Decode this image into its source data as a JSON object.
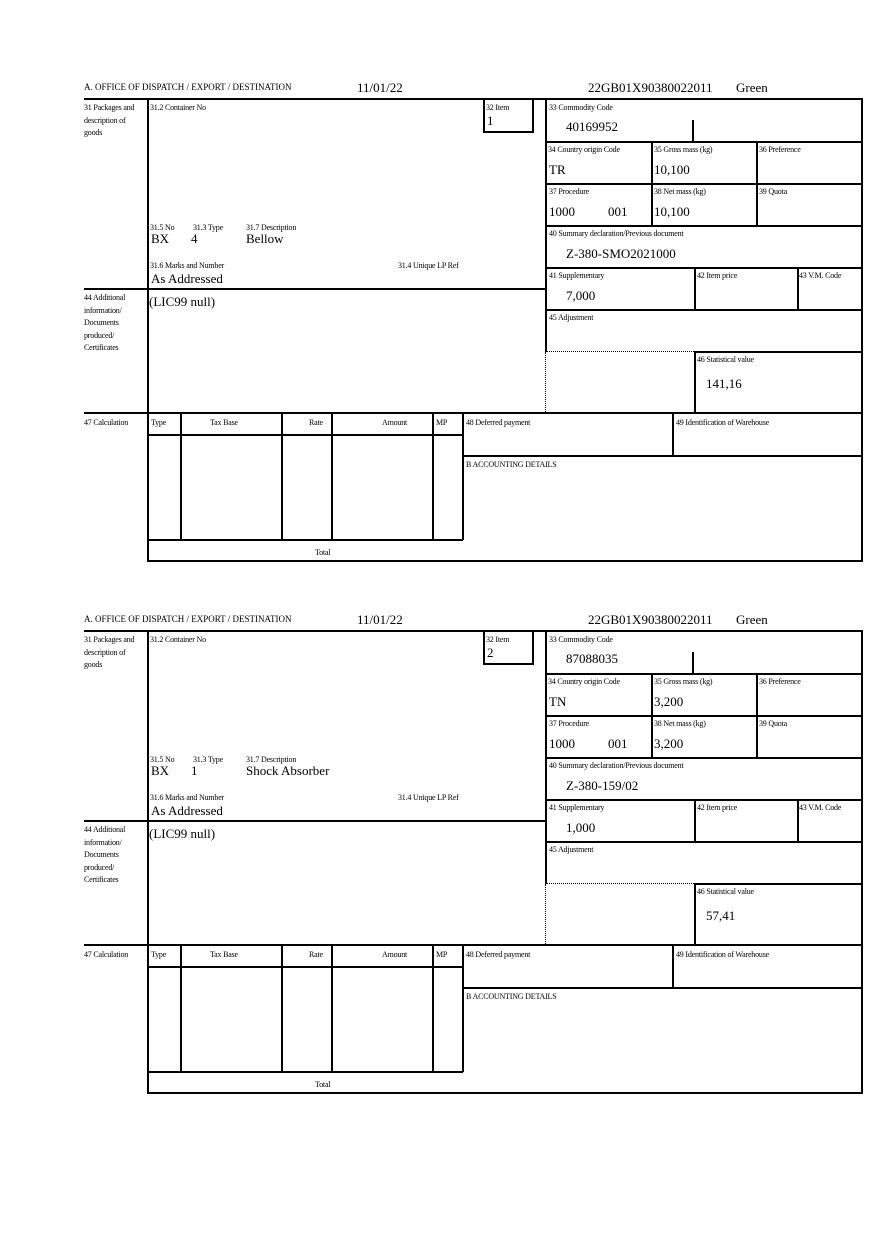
{
  "labels": {
    "office": "A. OFFICE OF DISPATCH / EXPORT / DESTINATION",
    "packages": "31 Packages and description of goods",
    "container_no": "31.2 Container No",
    "item": "32 Item",
    "commodity_code": "33 Commodity Code",
    "country_origin": "34 Country origin Code",
    "gross_mass": "35 Gross mass (kg)",
    "preference": "36 Preference",
    "procedure": "37 Procedure",
    "net_mass": "38 Net mass (kg)",
    "quota": "39 Quota",
    "summary_declaration": "40 Summary declaration/Previous document",
    "no": "31.5 No",
    "type": "31.3 Type",
    "description": "31.7 Description",
    "marks": "31.6 Marks and Number",
    "unique_lp_ref": "31.4 Unique LP Ref",
    "supplementary": "41 Supplementary",
    "item_price": "42 Item price",
    "vm_code": "43 V.M. Code",
    "additional_info": "44 Additional information/ Documents produced/ Certificates",
    "adjustment": "45 Adjustment",
    "statistical_value": "46 Statistical value",
    "calculation": "47 Calculation",
    "calc_type": "Type",
    "calc_tax_base": "Tax Base",
    "calc_rate": "Rate",
    "calc_amount": "Amount",
    "calc_mp": "MP",
    "deferred_payment": "48 Deferred payment",
    "warehouse": "49 Identification of Warehouse",
    "accounting": "B ACCOUNTING DETAILS",
    "total": "Total"
  },
  "forms": [
    {
      "date": "11/01/22",
      "reference": "22GB01X90380022011",
      "route": "Green",
      "item": "1",
      "commodity_code": "40169952",
      "country_origin": "TR",
      "gross_mass": "10,100",
      "procedure": "1000",
      "procedure_additional": "001",
      "net_mass": "10,100",
      "summary_declaration": "Z-380-SMO2021000",
      "no": "BX",
      "type": "4",
      "description": "Bellow",
      "marks": "As Addressed",
      "supplementary": "7,000",
      "additional_info": "(LIC99 null)",
      "statistical_value": "141,16"
    },
    {
      "date": "11/01/22",
      "reference": "22GB01X90380022011",
      "route": "Green",
      "item": "2",
      "commodity_code": "87088035",
      "country_origin": "TN",
      "gross_mass": "3,200",
      "procedure": "1000",
      "procedure_additional": "001",
      "net_mass": "3,200",
      "summary_declaration": "Z-380-159/02",
      "no": "BX",
      "type": "1",
      "description": "Shock Absorber",
      "marks": "As Addressed",
      "supplementary": "1,000",
      "additional_info": "(LIC99 null)",
      "statistical_value": "57,41"
    }
  ]
}
